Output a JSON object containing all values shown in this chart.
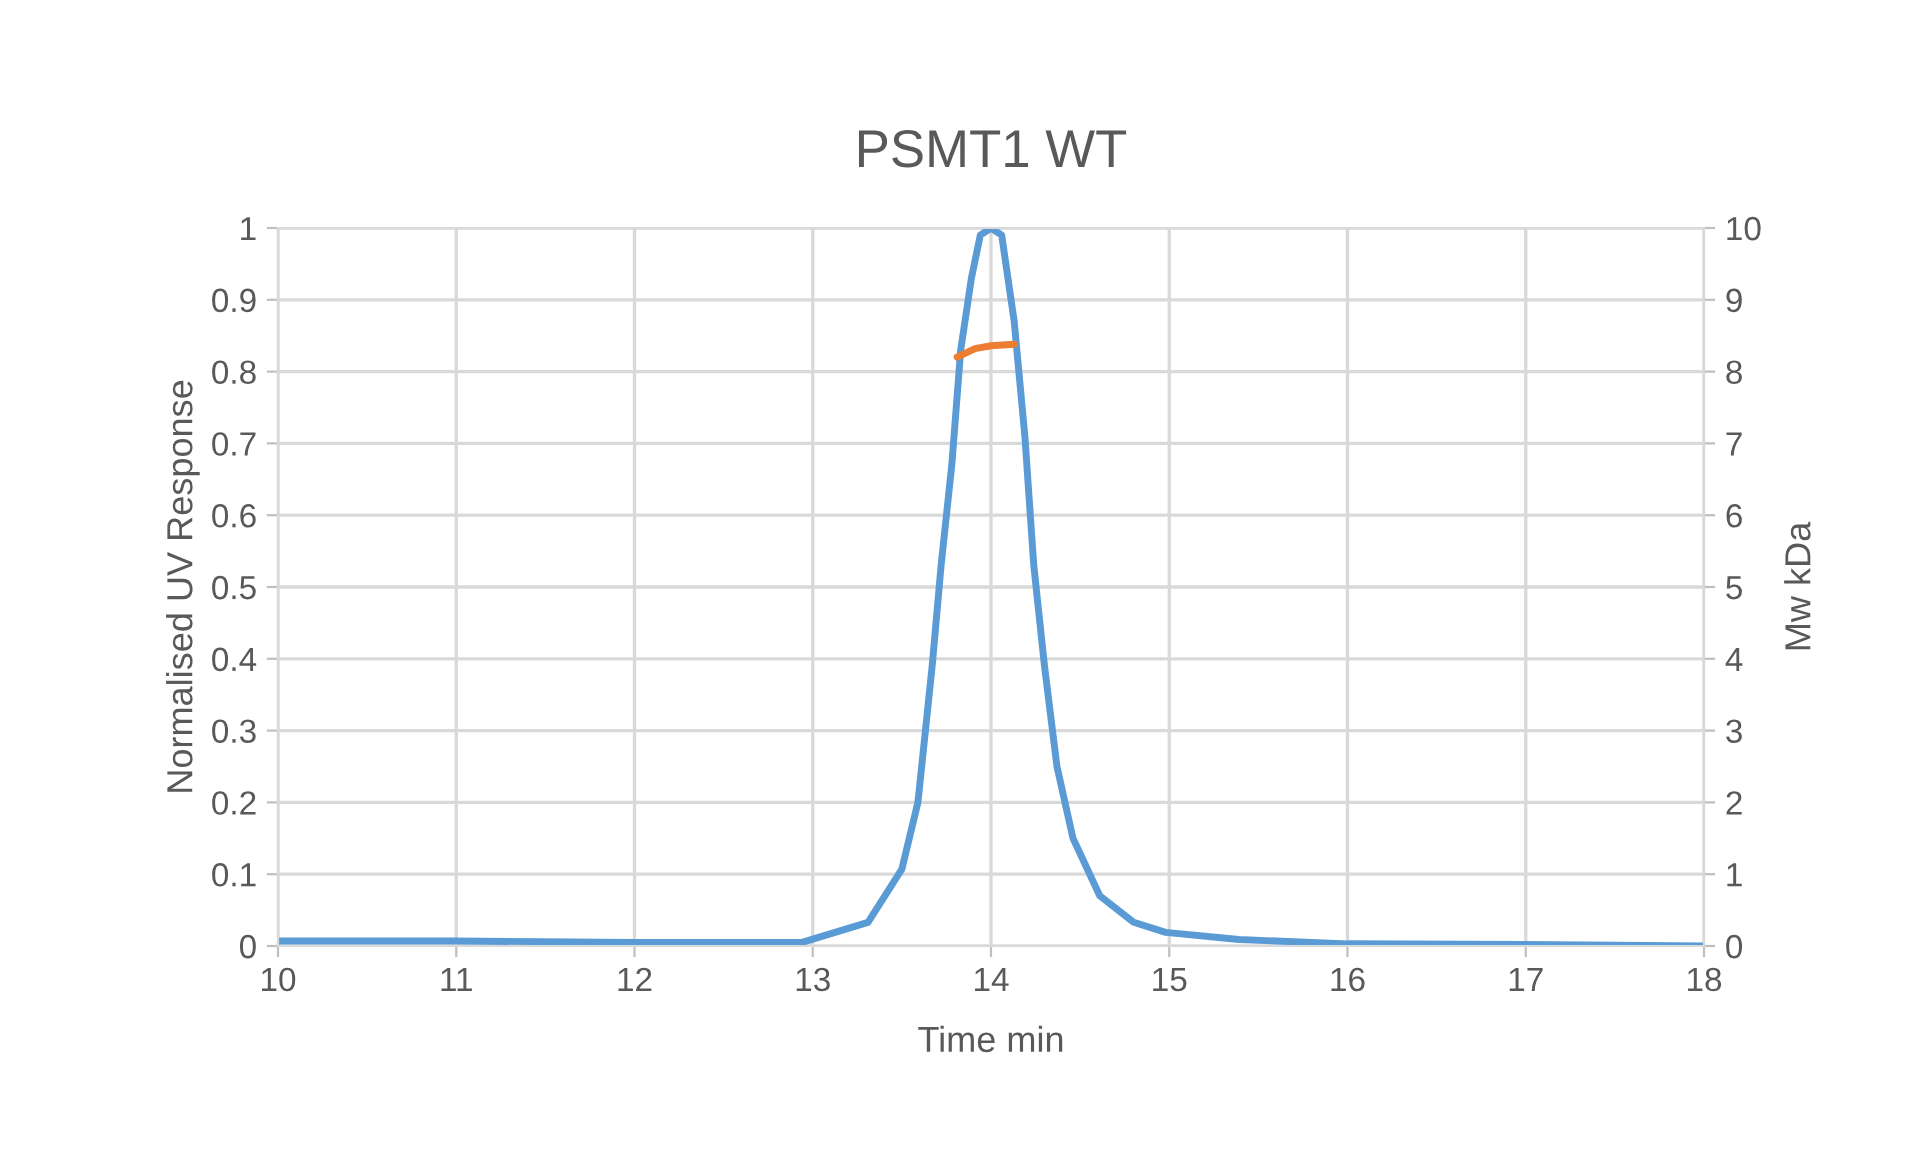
{
  "chart_data": {
    "type": "line",
    "title": "PSMT1 WT",
    "xlabel": "Time min",
    "ylabel": "Normalised UV Response",
    "y2label": "Mw kDa",
    "xlim": [
      10,
      18
    ],
    "xticks": [
      10,
      11,
      12,
      13,
      14,
      15,
      16,
      17,
      18
    ],
    "ylim": [
      0,
      1
    ],
    "yticks": [
      0,
      0.1,
      0.2,
      0.3,
      0.4,
      0.5,
      0.6,
      0.7,
      0.8,
      0.9,
      1
    ],
    "y2lim": [
      0,
      10
    ],
    "y2ticks": [
      0,
      1,
      2,
      3,
      4,
      5,
      6,
      7,
      8,
      9,
      10
    ],
    "grid": true,
    "legend": false,
    "marker": "none",
    "line_style": "solid",
    "series": [
      {
        "color": "#5b9bd5",
        "x": [
          10,
          11,
          12,
          12.94,
          13.31,
          13.5,
          13.59,
          13.67,
          13.72,
          13.78,
          13.83,
          13.89,
          13.94,
          14.0,
          14.06,
          14.13,
          14.19,
          14.24,
          14.3,
          14.37,
          14.46,
          14.61,
          14.8,
          14.98,
          15.39,
          16,
          17,
          18
        ],
        "values": [
          0.007,
          0.007,
          0.005,
          0.005,
          0.033,
          0.107,
          0.2,
          0.39,
          0.53,
          0.67,
          0.83,
          0.93,
          0.99,
          1.0,
          0.99,
          0.87,
          0.71,
          0.53,
          0.39,
          0.25,
          0.15,
          0.07,
          0.033,
          0.019,
          0.009,
          0.003,
          0.002,
          0.0
        ]
      },
      {
        "color": "#ed7d31",
        "axis": "y2",
        "x": [
          13.81,
          13.91,
          14.0,
          14.13
        ],
        "values": [
          8.2,
          8.32,
          8.36,
          8.38
        ]
      }
    ]
  }
}
